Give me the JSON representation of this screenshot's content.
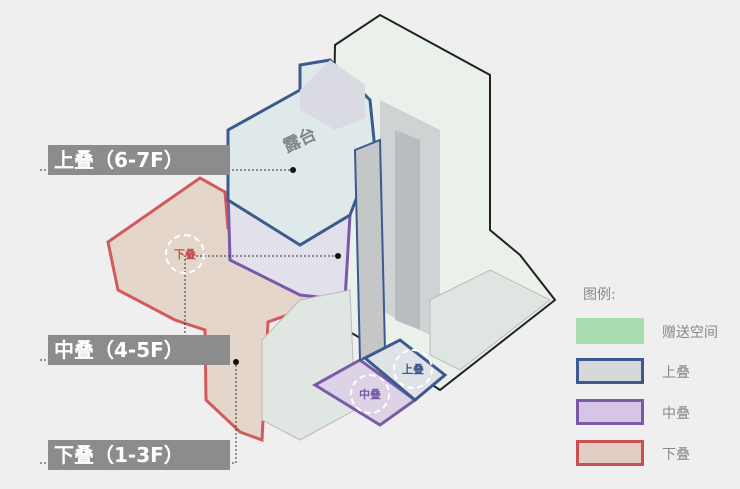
{
  "labels": {
    "upper": "上叠（6-7F）",
    "middle": "中叠（4-5F）",
    "lower": "下叠（1-3F）",
    "terrace": "露台"
  },
  "tags": {
    "lower": "下叠",
    "middle": "中叠",
    "upper": "上叠"
  },
  "legend": {
    "title": "图例:",
    "items": [
      {
        "label": "赠送空间",
        "fill": "#a8ddb0",
        "border": "#a8ddb0"
      },
      {
        "label": "上叠",
        "fill": "#d6d8da",
        "border": "#3b5a8e"
      },
      {
        "label": "中叠",
        "fill": "#d6c6e6",
        "border": "#7a5aa6"
      },
      {
        "label": "下叠",
        "fill": "#e2cec4",
        "border": "#c85050"
      }
    ]
  },
  "colors": {
    "upper": "#3b5a8e",
    "middle": "#7a5aa6",
    "lower": "#c85050",
    "gift": "#a8ddb0"
  }
}
